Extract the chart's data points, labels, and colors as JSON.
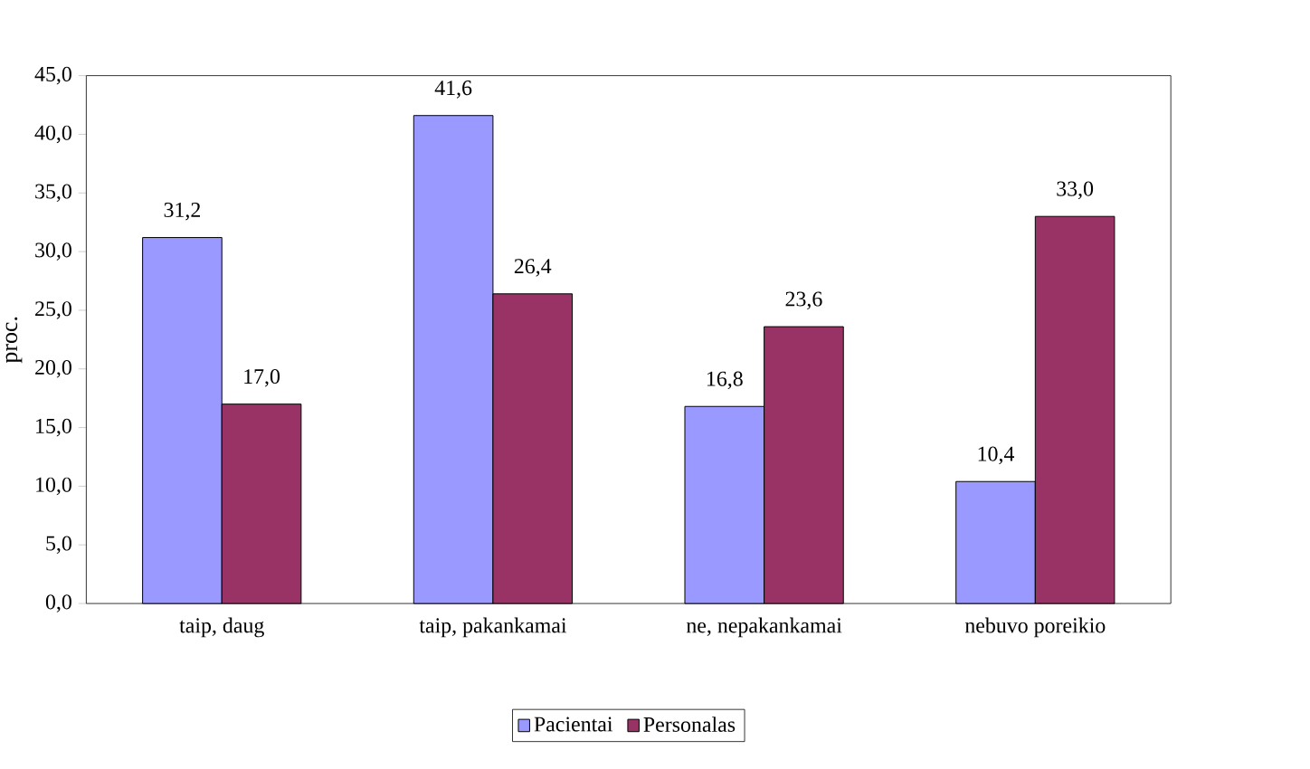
{
  "chart_data": {
    "type": "bar",
    "ylabel": "proc.",
    "categories": [
      "taip, daug",
      "taip, pakankamai",
      "ne, nepakankamai",
      "nebuvo poreikio"
    ],
    "series": [
      {
        "name": "Pacientai",
        "color": "#9999ff",
        "values": [
          31.2,
          41.6,
          16.8,
          10.4
        ],
        "value_labels": [
          "31,2",
          "41,6",
          "16,8",
          "10,4"
        ]
      },
      {
        "name": "Personalas",
        "color": "#993366",
        "values": [
          17.0,
          26.4,
          23.6,
          33.0
        ],
        "value_labels": [
          "17,0",
          "26,4",
          "23,6",
          "33,0"
        ]
      }
    ],
    "ylim": [
      0,
      45
    ],
    "yticks": [
      {
        "value": 0,
        "label": "0,0"
      },
      {
        "value": 5,
        "label": "5,0"
      },
      {
        "value": 10,
        "label": "10,0"
      },
      {
        "value": 15,
        "label": "15,0"
      },
      {
        "value": 20,
        "label": "20,0"
      },
      {
        "value": 25,
        "label": "25,0"
      },
      {
        "value": 30,
        "label": "30,0"
      },
      {
        "value": 35,
        "label": "35,0"
      },
      {
        "value": 40,
        "label": "40,0"
      },
      {
        "value": 45,
        "label": "45,0"
      }
    ],
    "legend": "bottom",
    "grid": false
  }
}
